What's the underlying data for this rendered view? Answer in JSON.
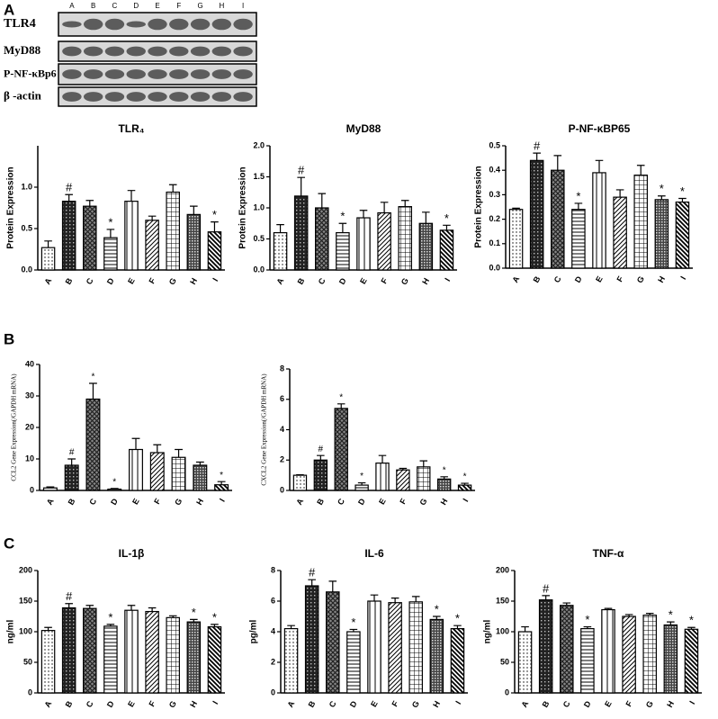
{
  "panel_labels": [
    "A",
    "B",
    "C"
  ],
  "blot": {
    "lanes": [
      "A",
      "B",
      "C",
      "D",
      "E",
      "F",
      "G",
      "H",
      "I"
    ],
    "rows": [
      "TLR4",
      "MyD88",
      "P-NF-κBp6",
      "β -actin"
    ]
  },
  "chart_data": [
    {
      "type": "bar",
      "title": "TLR₄",
      "y_label": "Protein Expression",
      "categories": [
        "A",
        "B",
        "C",
        "D",
        "E",
        "F",
        "G",
        "H",
        "I"
      ],
      "values": [
        0.27,
        0.83,
        0.77,
        0.39,
        0.83,
        0.6,
        0.94,
        0.67,
        0.46
      ],
      "errors": [
        0.08,
        0.08,
        0.07,
        0.1,
        0.13,
        0.05,
        0.09,
        0.1,
        0.12
      ],
      "annotations": [
        null,
        "#",
        null,
        "*",
        null,
        null,
        null,
        null,
        "*"
      ],
      "ylim": [
        0,
        1.5
      ],
      "yticks": [
        {
          "value": 0,
          "label": "0.0"
        },
        0.5,
        {
          "value": 1,
          "label": "1.0"
        }
      ]
    },
    {
      "type": "bar",
      "title": "MyD88",
      "y_label": "Protein Expression",
      "categories": [
        "A",
        "B",
        "C",
        "D",
        "E",
        "F",
        "G",
        "H",
        "I"
      ],
      "values": [
        0.6,
        1.19,
        1.0,
        0.6,
        0.84,
        0.92,
        1.02,
        0.75,
        0.64
      ],
      "errors": [
        0.13,
        0.3,
        0.23,
        0.15,
        0.12,
        0.17,
        0.1,
        0.18,
        0.08
      ],
      "annotations": [
        null,
        "#",
        null,
        "*",
        null,
        null,
        null,
        null,
        "*"
      ],
      "ylim": [
        0,
        2
      ],
      "yticks": [
        {
          "value": 0,
          "label": "0.0"
        },
        0.5,
        {
          "value": 1,
          "label": "1.0"
        },
        1.5,
        {
          "value": 2,
          "label": "2.0"
        }
      ]
    },
    {
      "type": "bar",
      "title": "P-NF-κBP65",
      "y_label": "Protein Expression",
      "categories": [
        "A",
        "B",
        "C",
        "D",
        "E",
        "F",
        "G",
        "H",
        "I"
      ],
      "values": [
        0.24,
        0.44,
        0.4,
        0.24,
        0.39,
        0.29,
        0.38,
        0.28,
        0.27
      ],
      "errors": [
        0.005,
        0.03,
        0.06,
        0.025,
        0.05,
        0.03,
        0.04,
        0.015,
        0.015
      ],
      "annotations": [
        null,
        "#",
        null,
        "*",
        null,
        null,
        null,
        "*",
        "*"
      ],
      "ylim": [
        0,
        0.5
      ],
      "yticks": [
        {
          "value": 0,
          "label": "0.0"
        },
        0.1,
        0.2,
        0.3,
        0.4,
        0.5
      ]
    },
    {
      "type": "bar",
      "y_label": "CCL2 Gene Expression(/GAPDH mRNA)",
      "categories": [
        "A",
        "B",
        "C",
        "D",
        "E",
        "F",
        "G",
        "H",
        "I"
      ],
      "values": [
        0.8,
        8,
        29,
        0.4,
        13,
        12,
        10.5,
        8,
        1.8
      ],
      "errors": [
        0.3,
        2,
        5,
        0.2,
        3.5,
        2.5,
        2.5,
        1,
        1
      ],
      "annotations": [
        null,
        "#",
        "*",
        "*",
        null,
        null,
        null,
        null,
        "*"
      ],
      "ylim": [
        0,
        40
      ],
      "yticks": [
        0,
        10,
        20,
        30,
        40
      ]
    },
    {
      "type": "bar",
      "y_label": "CXCL2 Gene Expression(/GAPDH mRNA)",
      "categories": [
        "A",
        "B",
        "C",
        "D",
        "E",
        "F",
        "G",
        "H",
        "I"
      ],
      "values": [
        1.0,
        2.0,
        5.4,
        0.35,
        1.8,
        1.35,
        1.55,
        0.75,
        0.35
      ],
      "errors": [
        0.03,
        0.3,
        0.3,
        0.15,
        0.5,
        0.1,
        0.4,
        0.15,
        0.12
      ],
      "annotations": [
        null,
        "#",
        "*",
        "*",
        null,
        null,
        null,
        "*",
        "*"
      ],
      "ylim": [
        0,
        8
      ],
      "yticks": [
        0,
        2,
        4,
        6,
        8
      ]
    },
    {
      "type": "bar",
      "title": "IL-1β",
      "y_label": "ng/ml",
      "categories": [
        "A",
        "B",
        "C",
        "D",
        "E",
        "F",
        "G",
        "H",
        "I"
      ],
      "values": [
        102,
        139,
        138,
        109,
        135,
        133,
        123,
        116,
        108
      ],
      "errors": [
        5,
        7,
        5,
        3,
        8,
        6,
        3,
        4,
        4
      ],
      "annotations": [
        null,
        "#",
        null,
        "*",
        null,
        null,
        null,
        "*",
        "*"
      ],
      "ylim": [
        0,
        200
      ],
      "yticks": [
        0,
        50,
        100,
        150,
        200
      ]
    },
    {
      "type": "bar",
      "title": "IL-6",
      "y_label": "pg/ml",
      "categories": [
        "A",
        "B",
        "C",
        "D",
        "E",
        "F",
        "G",
        "H",
        "I"
      ],
      "values": [
        4.2,
        7.0,
        6.6,
        4.0,
        6.0,
        5.9,
        5.95,
        4.8,
        4.2
      ],
      "errors": [
        0.2,
        0.4,
        0.7,
        0.15,
        0.4,
        0.3,
        0.35,
        0.2,
        0.2
      ],
      "annotations": [
        null,
        "#",
        null,
        "*",
        null,
        null,
        null,
        "*",
        "*"
      ],
      "ylim": [
        0,
        8
      ],
      "yticks": [
        0,
        2,
        4,
        6,
        8
      ]
    },
    {
      "type": "bar",
      "title": "TNF-α",
      "y_label": "ng/ml",
      "categories": [
        "A",
        "B",
        "C",
        "D",
        "E",
        "F",
        "G",
        "H",
        "I"
      ],
      "values": [
        100,
        152,
        143,
        105,
        136,
        125,
        127,
        111,
        104
      ],
      "errors": [
        8,
        7,
        4,
        3,
        2,
        3,
        3,
        5,
        3
      ],
      "annotations": [
        null,
        "#",
        null,
        "*",
        null,
        null,
        null,
        "*",
        "*"
      ],
      "ylim": [
        0,
        200
      ],
      "yticks": [
        0,
        50,
        100,
        150,
        200
      ]
    }
  ]
}
